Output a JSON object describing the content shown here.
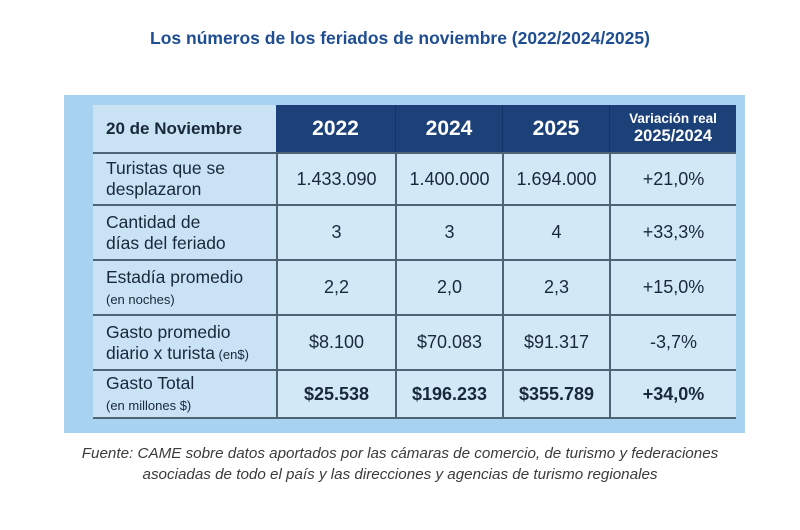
{
  "chart_data": {
    "type": "table",
    "title": "Los números de los feriados de noviembre (2022/2024/2025)",
    "corner_header": "20 de Noviembre",
    "year_headers": [
      "2022",
      "2024",
      "2025"
    ],
    "variation_header": {
      "line1": "Variación real",
      "line2": "2025/2024"
    },
    "rows": [
      {
        "label": "Turistas que se desplazaron",
        "label_line1": "Turistas que se",
        "label_line2": "desplazaron",
        "label_small": "",
        "values": [
          "1.433.090",
          "1.400.000",
          "1.694.000"
        ],
        "variation": "+21,0%"
      },
      {
        "label": "Cantidad de días del feriado",
        "label_line1": "Cantidad de",
        "label_line2": "días del feriado",
        "label_small": "",
        "values": [
          "3",
          "3",
          "4"
        ],
        "variation": "+33,3%"
      },
      {
        "label": "Estadía promedio (en noches)",
        "label_line1": "Estadía promedio",
        "label_line2": "",
        "label_small": "(en noches)",
        "values": [
          "2,2",
          "2,0",
          "2,3"
        ],
        "variation": "+15,0%"
      },
      {
        "label": "Gasto promedio diario x turista (en$)",
        "label_line1": "Gasto promedio",
        "label_line2": "diario x turista",
        "label_small": " (en$)",
        "values": [
          "$8.100",
          "$70.083",
          "$91.317"
        ],
        "variation": "-3,7%"
      },
      {
        "label": "Gasto Total (en millones $)",
        "label_line1": "Gasto Total",
        "label_line2": "",
        "label_small": "(en millones $)",
        "values": [
          "$25.538",
          "$196.233",
          "$355.789"
        ],
        "variation": "+34,0%"
      }
    ]
  },
  "footer": {
    "line1": "Fuente: CAME sobre datos aportados por las cámaras de comercio, de turismo y federaciones",
    "line2": "asociadas de todo el país y las direcciones y agencias de turismo regionales"
  },
  "colors": {
    "title_blue": "#1e4e91",
    "header_navy": "#1c4179",
    "panel_blue": "#a8d3f0",
    "label_cell_blue": "#c9e2f4",
    "data_cell_blue": "#d3e8f7",
    "grid_border": "#4e6374",
    "text_dark": "#17293b"
  }
}
